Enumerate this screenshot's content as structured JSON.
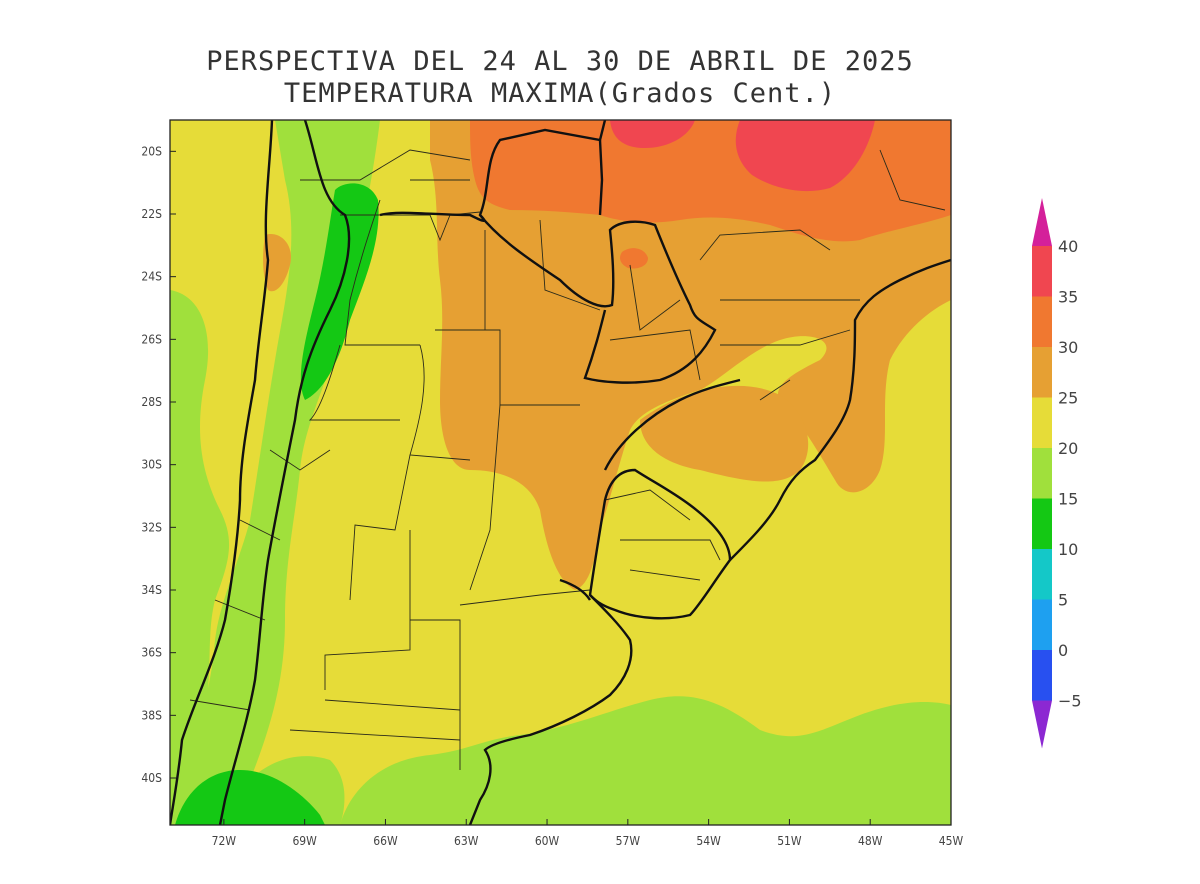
{
  "title": {
    "line1": "PERSPECTIVA DEL 24 AL 30 DE ABRIL DE 2025",
    "line2": "TEMPERATURA MAXIMA(Grados Cent.)"
  },
  "map": {
    "lon_labels": [
      "72W",
      "69W",
      "66W",
      "63W",
      "60W",
      "57W",
      "54W",
      "51W",
      "48W",
      "45W"
    ],
    "lat_labels": [
      "20S",
      "22S",
      "24S",
      "26S",
      "28S",
      "30S",
      "32S",
      "34S",
      "36S",
      "38S",
      "40S"
    ],
    "lon_range": [
      -74,
      -45
    ],
    "lat_range": [
      -41.5,
      -19
    ]
  },
  "colorbar": {
    "labels": [
      "40",
      "35",
      "30",
      "25",
      "20",
      "15",
      "10",
      "5",
      "0",
      "−5"
    ],
    "bands": [
      {
        "range": "> 40",
        "color": "#d4209a"
      },
      {
        "range": "35-40",
        "color": "#f04650"
      },
      {
        "range": "30-35",
        "color": "#f07830"
      },
      {
        "range": "25-30",
        "color": "#e6a033"
      },
      {
        "range": "20-25",
        "color": "#e6dc38"
      },
      {
        "range": "15-20",
        "color": "#a0e03c"
      },
      {
        "range": "10-15",
        "color": "#14c814"
      },
      {
        "range": "5-10",
        "color": "#14c8c8"
      },
      {
        "range": "0-5",
        "color": "#1ea0f0"
      },
      {
        "range": "-5-0",
        "color": "#2850f0"
      },
      {
        "range": "< -5",
        "color": "#8c28d2"
      }
    ]
  }
}
